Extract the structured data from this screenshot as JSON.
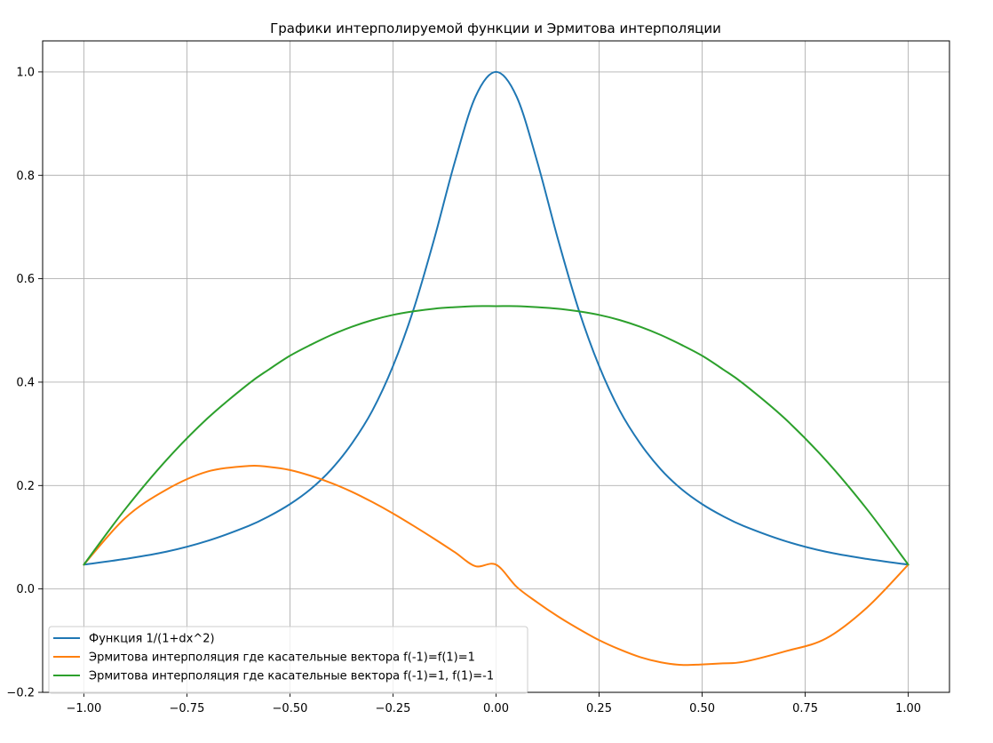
{
  "chart_data": {
    "type": "line",
    "title": "Графики интерполируемой функции и Эрмитова интерполяции",
    "xlabel": "",
    "ylabel": "",
    "xlim": [
      -1.1,
      1.1
    ],
    "ylim": [
      -0.2,
      1.06
    ],
    "grid": true,
    "legend_position": "lower-left",
    "x_ticks": [
      -1.0,
      -0.75,
      -0.5,
      -0.25,
      0.0,
      0.25,
      0.5,
      0.75,
      1.0
    ],
    "x_tick_labels": [
      "−1.00",
      "−0.75",
      "−0.50",
      "−0.25",
      "0.00",
      "0.25",
      "0.50",
      "0.75",
      "1.00"
    ],
    "y_ticks": [
      -0.2,
      0.0,
      0.2,
      0.4,
      0.6,
      0.8,
      1.0
    ],
    "y_tick_labels": [
      "−0.2",
      "0.0",
      "0.2",
      "0.4",
      "0.6",
      "0.8",
      "1.0"
    ],
    "x": [
      -1.0,
      -0.9,
      -0.8,
      -0.7,
      -0.6,
      -0.55,
      -0.5,
      -0.45,
      -0.4,
      -0.35,
      -0.3,
      -0.25,
      -0.2,
      -0.15,
      -0.1,
      -0.05,
      0.0,
      0.05,
      0.1,
      0.15,
      0.2,
      0.25,
      0.3,
      0.35,
      0.4,
      0.45,
      0.5,
      0.55,
      0.6,
      0.7,
      0.8,
      0.9,
      1.0
    ],
    "series": [
      {
        "name": "Функция 1/(1+dx^2)",
        "color": "#1f77b4",
        "values": [
          0.047,
          0.058,
          0.072,
          0.093,
          0.122,
          0.141,
          0.164,
          0.193,
          0.231,
          0.281,
          0.345,
          0.431,
          0.541,
          0.677,
          0.826,
          0.952,
          1.0,
          0.952,
          0.826,
          0.677,
          0.541,
          0.431,
          0.345,
          0.281,
          0.231,
          0.193,
          0.164,
          0.141,
          0.122,
          0.093,
          0.072,
          0.058,
          0.047
        ]
      },
      {
        "name": "Эрмитова интерполяция где касательные вектора f(-1)=f(1)=1",
        "color": "#ff7f0e",
        "values": [
          0.047,
          0.137,
          0.192,
          0.227,
          0.238,
          0.236,
          0.23,
          0.219,
          0.205,
          0.188,
          0.168,
          0.146,
          0.122,
          0.097,
          0.071,
          0.044,
          0.047,
          0.004,
          -0.026,
          -0.053,
          -0.077,
          -0.099,
          -0.117,
          -0.132,
          -0.142,
          -0.147,
          -0.146,
          -0.144,
          -0.141,
          -0.121,
          -0.096,
          -0.036,
          0.047
        ]
      },
      {
        "name": "Эрмитова интерполяция где касательные вектора f(-1)=1, f(1)=-1",
        "color": "#2ca02c",
        "values": [
          0.047,
          0.154,
          0.249,
          0.33,
          0.397,
          0.425,
          0.451,
          0.472,
          0.491,
          0.507,
          0.52,
          0.53,
          0.537,
          0.542,
          0.545,
          0.547,
          0.547,
          0.547,
          0.545,
          0.542,
          0.537,
          0.53,
          0.52,
          0.507,
          0.491,
          0.472,
          0.451,
          0.425,
          0.397,
          0.33,
          0.249,
          0.154,
          0.047
        ]
      }
    ]
  }
}
